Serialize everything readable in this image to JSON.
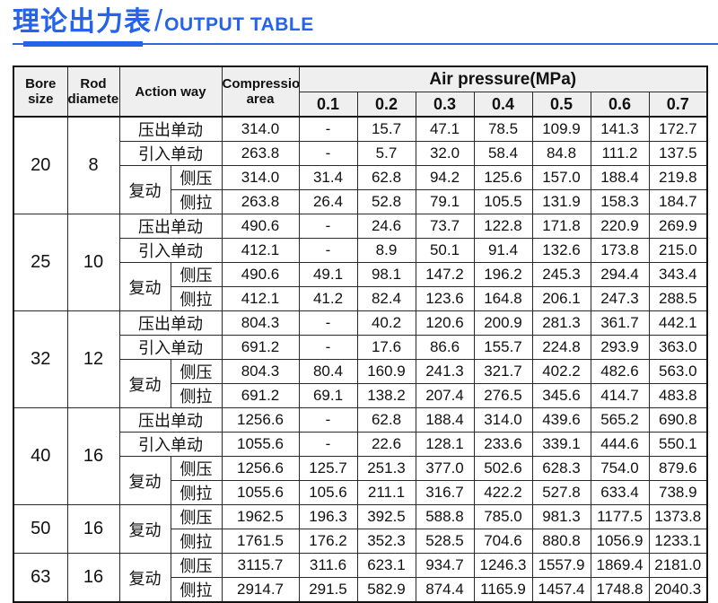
{
  "title": {
    "zh": "理论出力表",
    "sep": "/",
    "en": "OUTPUT TABLE"
  },
  "colors": {
    "accent": "#2563eb",
    "header_bg": "#efefef",
    "border": "#1a1a1a"
  },
  "table": {
    "headers": {
      "bore": "Bore size",
      "rod": "Rod diameter",
      "action": "Action way",
      "compression": "Compression area",
      "air": "Air pressure(MPa)",
      "pressures": [
        "0.1",
        "0.2",
        "0.3",
        "0.4",
        "0.5",
        "0.6",
        "0.7"
      ]
    },
    "groups": [
      {
        "bore": "20",
        "rod": "8",
        "rows": [
          {
            "action": "压出单动",
            "sub": "",
            "area": "314.0",
            "values": [
              "-",
              "15.7",
              "47.1",
              "78.5",
              "109.9",
              "141.3",
              "172.7"
            ]
          },
          {
            "action": "引入单动",
            "sub": "",
            "area": "263.8",
            "values": [
              "-",
              "5.7",
              "32.0",
              "58.4",
              "84.8",
              "111.2",
              "137.5"
            ]
          },
          {
            "action": "复动",
            "sub": "侧压",
            "area": "314.0",
            "values": [
              "31.4",
              "62.8",
              "94.2",
              "125.6",
              "157.0",
              "188.4",
              "219.8"
            ]
          },
          {
            "action": "复动",
            "sub": "侧拉",
            "area": "263.8",
            "values": [
              "26.4",
              "52.8",
              "79.1",
              "105.5",
              "131.9",
              "158.3",
              "184.7"
            ]
          }
        ]
      },
      {
        "bore": "25",
        "rod": "10",
        "rows": [
          {
            "action": "压出单动",
            "sub": "",
            "area": "490.6",
            "values": [
              "-",
              "24.6",
              "73.7",
              "122.8",
              "171.8",
              "220.9",
              "269.9"
            ]
          },
          {
            "action": "引入单动",
            "sub": "",
            "area": "412.1",
            "values": [
              "-",
              "8.9",
              "50.1",
              "91.4",
              "132.6",
              "173.8",
              "215.0"
            ]
          },
          {
            "action": "复动",
            "sub": "侧压",
            "area": "490.6",
            "values": [
              "49.1",
              "98.1",
              "147.2",
              "196.2",
              "245.3",
              "294.4",
              "343.4"
            ]
          },
          {
            "action": "复动",
            "sub": "侧拉",
            "area": "412.1",
            "values": [
              "41.2",
              "82.4",
              "123.6",
              "164.8",
              "206.1",
              "247.3",
              "288.5"
            ]
          }
        ]
      },
      {
        "bore": "32",
        "rod": "12",
        "rows": [
          {
            "action": "压出单动",
            "sub": "",
            "area": "804.3",
            "values": [
              "-",
              "40.2",
              "120.6",
              "200.9",
              "281.3",
              "361.7",
              "442.1"
            ]
          },
          {
            "action": "引入单动",
            "sub": "",
            "area": "691.2",
            "values": [
              "-",
              "17.6",
              "86.6",
              "155.7",
              "224.8",
              "293.9",
              "363.0"
            ]
          },
          {
            "action": "复动",
            "sub": "侧压",
            "area": "804.3",
            "values": [
              "80.4",
              "160.9",
              "241.3",
              "321.7",
              "402.2",
              "482.6",
              "563.0"
            ]
          },
          {
            "action": "复动",
            "sub": "侧拉",
            "area": "691.2",
            "values": [
              "69.1",
              "138.2",
              "207.4",
              "276.5",
              "345.6",
              "414.7",
              "483.8"
            ]
          }
        ]
      },
      {
        "bore": "40",
        "rod": "16",
        "rows": [
          {
            "action": "压出单动",
            "sub": "",
            "area": "1256.6",
            "values": [
              "-",
              "62.8",
              "188.4",
              "314.0",
              "439.6",
              "565.2",
              "690.8"
            ]
          },
          {
            "action": "引入单动",
            "sub": "",
            "area": "1055.6",
            "values": [
              "-",
              "22.6",
              "128.1",
              "233.6",
              "339.1",
              "444.6",
              "550.1"
            ]
          },
          {
            "action": "复动",
            "sub": "侧压",
            "area": "1256.6",
            "values": [
              "125.7",
              "251.3",
              "377.0",
              "502.6",
              "628.3",
              "754.0",
              "879.6"
            ]
          },
          {
            "action": "复动",
            "sub": "侧拉",
            "area": "1055.6",
            "values": [
              "105.6",
              "211.1",
              "316.7",
              "422.2",
              "527.8",
              "633.4",
              "738.9"
            ]
          }
        ]
      },
      {
        "bore": "50",
        "rod": "16",
        "rows": [
          {
            "action": "复动",
            "sub": "侧压",
            "area": "1962.5",
            "values": [
              "196.3",
              "392.5",
              "588.8",
              "785.0",
              "981.3",
              "1177.5",
              "1373.8"
            ]
          },
          {
            "action": "复动",
            "sub": "侧拉",
            "area": "1761.5",
            "values": [
              "176.2",
              "352.3",
              "528.5",
              "704.6",
              "880.8",
              "1056.9",
              "1233.1"
            ]
          }
        ]
      },
      {
        "bore": "63",
        "rod": "16",
        "rows": [
          {
            "action": "复动",
            "sub": "侧压",
            "area": "3115.7",
            "values": [
              "311.6",
              "623.1",
              "934.7",
              "1246.3",
              "1557.9",
              "1869.4",
              "2181.0"
            ]
          },
          {
            "action": "复动",
            "sub": "侧拉",
            "area": "2914.7",
            "values": [
              "291.5",
              "582.9",
              "874.4",
              "1165.9",
              "1457.4",
              "1748.8",
              "2040.3"
            ]
          }
        ]
      }
    ]
  }
}
